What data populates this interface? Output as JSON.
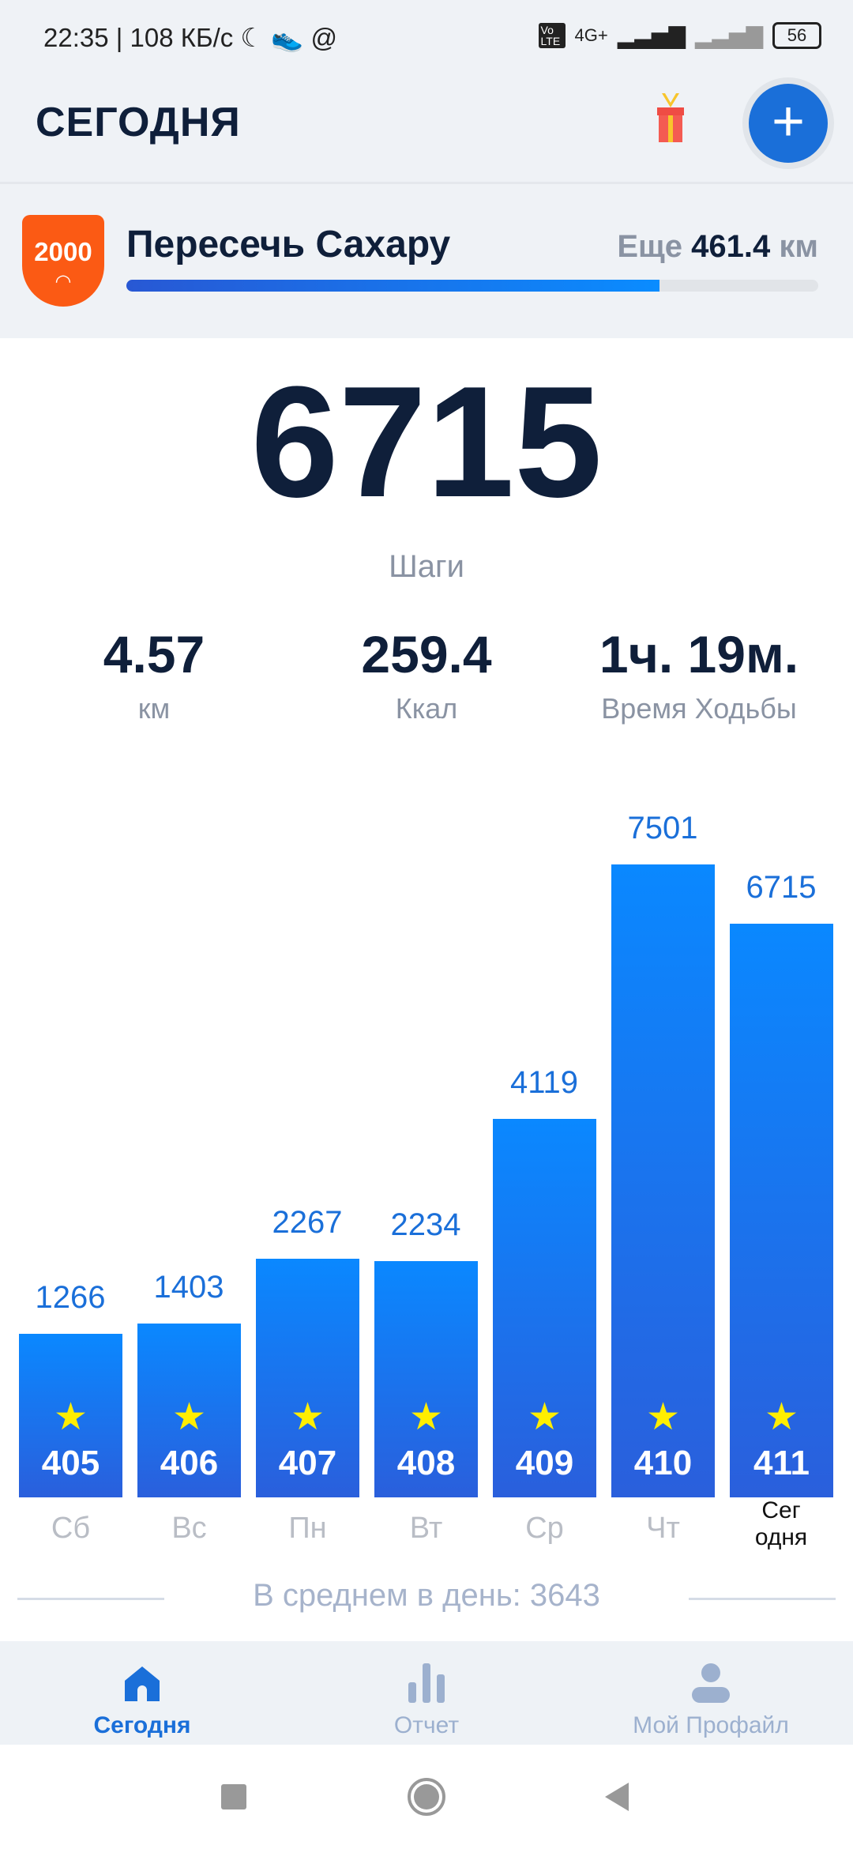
{
  "status_bar": {
    "left": "22:35 | 108 КБ/с ☾ 👟 @",
    "network": "4G+",
    "volte": "Vo LTE",
    "battery": "56"
  },
  "header": {
    "title": "СЕГОДНЯ",
    "plus_label": "+"
  },
  "challenge": {
    "badge": "2000",
    "title": "Пересечь Сахару",
    "remaining_prefix": "Еще",
    "remaining_value": "461.4",
    "remaining_unit": "км",
    "progress_percent": 77
  },
  "today": {
    "steps": "6715",
    "steps_label": "Шаги"
  },
  "stats": [
    {
      "value": "4.57",
      "label": "км"
    },
    {
      "value": "259.4",
      "label": "Ккал"
    },
    {
      "value": "1ч. 19м.",
      "label": "Время Ходьбы"
    }
  ],
  "chart_data": {
    "type": "bar",
    "categories": [
      "Сб",
      "Вс",
      "Пн",
      "Вт",
      "Ср",
      "Чт",
      "Сег одня"
    ],
    "values": [
      1266,
      1403,
      2267,
      2234,
      4119,
      7501,
      6715
    ],
    "bar_badges": [
      "405",
      "406",
      "407",
      "408",
      "409",
      "410",
      "411"
    ],
    "colors": {
      "bar_top": "#0a88ff",
      "bar_bottom": "#2a5fdc",
      "value_label": "#1a6fd9",
      "star": "#ffee00"
    }
  },
  "average": "В среднем в день: 3643",
  "bottom_nav": [
    {
      "label": "Сегодня",
      "icon": "home-icon",
      "active": true
    },
    {
      "label": "Отчет",
      "icon": "bar-chart-icon",
      "active": false
    },
    {
      "label": "Мой Профайл",
      "icon": "user-icon",
      "active": false
    }
  ]
}
